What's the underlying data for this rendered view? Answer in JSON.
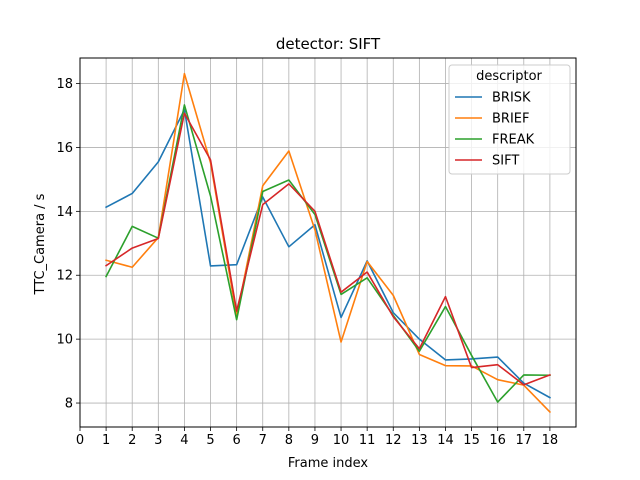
{
  "chart_data": {
    "type": "line",
    "title": "detector: SIFT",
    "xlabel": "Frame index",
    "ylabel": "TTC_Camera / s",
    "xlim": [
      0,
      19
    ],
    "ylim": [
      7.25,
      18.8
    ],
    "xticks": [
      0,
      1,
      2,
      3,
      4,
      5,
      6,
      7,
      8,
      9,
      10,
      11,
      12,
      13,
      14,
      15,
      16,
      17,
      18
    ],
    "yticks": [
      8,
      10,
      12,
      14,
      16,
      18
    ],
    "grid": true,
    "legend": {
      "title": "descriptor",
      "position": "top-right"
    },
    "x": [
      1,
      2,
      3,
      4,
      5,
      6,
      7,
      8,
      9,
      10,
      11,
      12,
      13,
      14,
      15,
      16,
      17,
      18
    ],
    "series": [
      {
        "name": "BRISK",
        "color": "#1f77b4",
        "values": [
          14.13,
          14.56,
          15.55,
          17.18,
          12.29,
          12.33,
          14.45,
          12.89,
          13.58,
          10.68,
          12.45,
          10.83,
          10.0,
          9.35,
          9.38,
          9.44,
          8.62,
          8.17
        ]
      },
      {
        "name": "BRIEF",
        "color": "#ff7f0e",
        "values": [
          12.47,
          12.25,
          13.18,
          18.31,
          15.52,
          10.72,
          14.8,
          15.89,
          13.42,
          9.91,
          12.43,
          11.37,
          9.52,
          9.17,
          9.16,
          8.73,
          8.56,
          7.72
        ]
      },
      {
        "name": "FREAK",
        "color": "#2ca02c",
        "values": [
          11.96,
          13.53,
          13.16,
          17.33,
          14.48,
          10.61,
          14.62,
          14.98,
          13.9,
          11.4,
          11.92,
          10.74,
          9.62,
          11.02,
          9.49,
          8.03,
          8.88,
          8.87
        ]
      },
      {
        "name": "SIFT",
        "color": "#d62728",
        "values": [
          12.3,
          12.85,
          13.15,
          17.07,
          15.61,
          10.88,
          14.21,
          14.86,
          14.0,
          11.47,
          12.1,
          10.7,
          9.7,
          11.33,
          9.11,
          9.2,
          8.57,
          8.88
        ]
      }
    ]
  }
}
